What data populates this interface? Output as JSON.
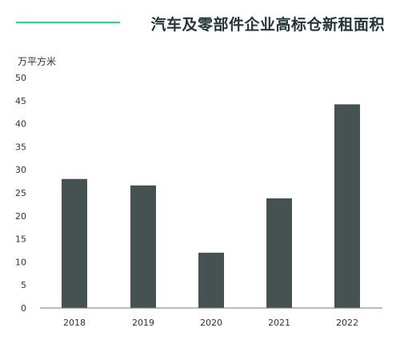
{
  "colors": {
    "accent_line": "#1ed9a3",
    "title": "#26353a",
    "bar": "#465152",
    "axis": "#777777",
    "text": "#333333"
  },
  "chart_data": {
    "type": "bar",
    "title": "汽车及零部件企业高标仓新租面积",
    "unit_label": "万平方米",
    "xlabel": "",
    "ylabel": "",
    "categories": [
      "2018",
      "2019",
      "2020",
      "2021",
      "2022"
    ],
    "values": [
      28,
      26.6,
      12,
      23.8,
      44.2
    ],
    "ylim": [
      0,
      50
    ],
    "yticks": [
      0,
      5,
      10,
      15,
      20,
      25,
      30,
      35,
      40,
      45,
      50
    ],
    "grid": false,
    "legend": "none"
  }
}
